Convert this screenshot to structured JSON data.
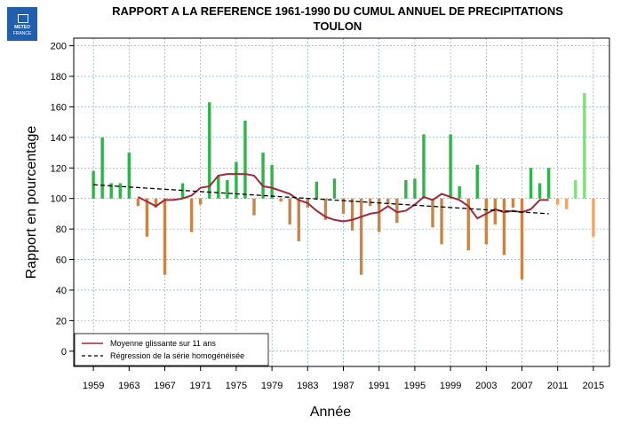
{
  "logo": {
    "line1": "METEO",
    "line2": "FRANCE"
  },
  "chart_data": {
    "type": "bar",
    "title": "RAPPORT A LA REFERENCE 1961-1990 DU CUMUL ANNUEL DE PRECIPITATIONS",
    "subtitle": "TOULON",
    "xlabel": "Année",
    "ylabel": "Rapport en pourcentage",
    "baseline": 100,
    "ylim": [
      -10,
      205
    ],
    "xlim": [
      1956.8,
      2016.8
    ],
    "yticks": [
      0,
      20,
      40,
      60,
      80,
      100,
      120,
      140,
      160,
      180,
      200
    ],
    "xticks": [
      1959,
      1963,
      1967,
      1971,
      1975,
      1979,
      1983,
      1987,
      1991,
      1995,
      1999,
      2003,
      2007,
      2011,
      2015
    ],
    "grid": true,
    "colors": {
      "above": "#2fb44a",
      "below": "#c98446",
      "above_recent": "#7ee07a",
      "below_recent": "#f2a466",
      "moving_average": "#a02a3a",
      "regression": "#000000"
    },
    "years": [
      1959,
      1960,
      1961,
      1962,
      1963,
      1964,
      1965,
      1966,
      1967,
      1968,
      1969,
      1970,
      1971,
      1972,
      1973,
      1974,
      1975,
      1976,
      1977,
      1978,
      1979,
      1980,
      1981,
      1982,
      1983,
      1984,
      1985,
      1986,
      1987,
      1988,
      1989,
      1990,
      1991,
      1992,
      1993,
      1994,
      1995,
      1996,
      1997,
      1998,
      1999,
      2000,
      2001,
      2002,
      2003,
      2004,
      2005,
      2006,
      2007,
      2008,
      2009,
      2010,
      2011,
      2012,
      2013,
      2014,
      2015
    ],
    "values": [
      118,
      140,
      110,
      110,
      130,
      95,
      75,
      94,
      50,
      100,
      110,
      78,
      96,
      163,
      115,
      112,
      124,
      151,
      89,
      130,
      122,
      98,
      83,
      72,
      94,
      111,
      86,
      113,
      90,
      79,
      50,
      95,
      78,
      96,
      84,
      112,
      113,
      142,
      81,
      70,
      142,
      108,
      66,
      122,
      70,
      83,
      63,
      94,
      47,
      120,
      110,
      120,
      96,
      93,
      112,
      169,
      75
    ],
    "recent_from": 2011,
    "moving_average": {
      "name": "Moyenne glissante sur 11 ans",
      "years": [
        1964,
        1965,
        1966,
        1967,
        1968,
        1969,
        1970,
        1971,
        1972,
        1973,
        1974,
        1975,
        1976,
        1977,
        1978,
        1979,
        1980,
        1981,
        1982,
        1983,
        1984,
        1985,
        1986,
        1987,
        1988,
        1989,
        1990,
        1991,
        1992,
        1993,
        1994,
        1995,
        1996,
        1997,
        1998,
        1999,
        2000,
        2001,
        2002,
        2003,
        2004,
        2005,
        2006,
        2007,
        2008,
        2009,
        2010
      ],
      "values": [
        101,
        98,
        95,
        99,
        99,
        100,
        102,
        107,
        108,
        115,
        116,
        116,
        116,
        115,
        108,
        107,
        105,
        103,
        99,
        97,
        92,
        88,
        86,
        85,
        86,
        88,
        90,
        91,
        95,
        91,
        92,
        96,
        101,
        99,
        103,
        101,
        99,
        95,
        87,
        90,
        93,
        91,
        92,
        91,
        93,
        99,
        99
      ]
    },
    "regression": {
      "name": "Régression de la série homogénéisée",
      "x": [
        1959,
        2010
      ],
      "y": [
        109,
        90
      ]
    },
    "legend_position": "bottom-left"
  }
}
